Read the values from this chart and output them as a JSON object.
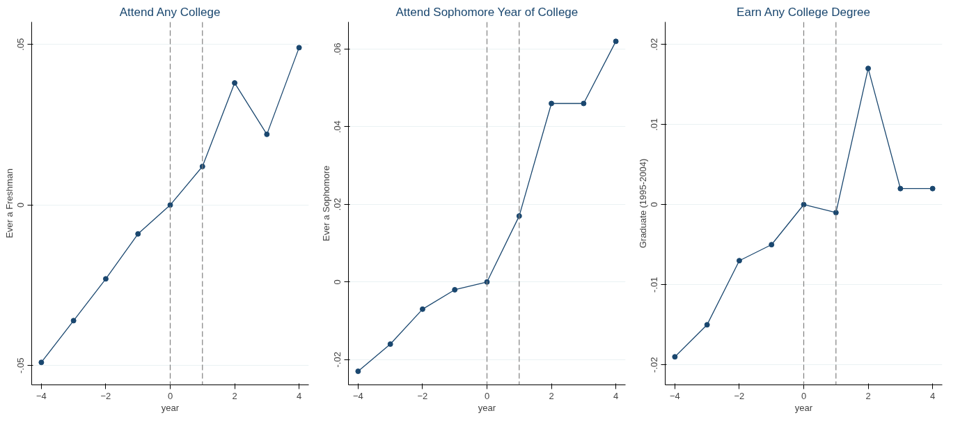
{
  "chart_data": [
    {
      "type": "line",
      "title": "Attend Any College",
      "xlabel": "year",
      "ylabel": "Ever a Freshman",
      "x": [
        -4,
        -3,
        -2,
        -1,
        0,
        1,
        2,
        3,
        4
      ],
      "series": [
        {
          "color": "#1a476f",
          "values": [
            -0.049,
            -0.036,
            -0.023,
            -0.009,
            0,
            0.012,
            0.038,
            0.022,
            0.049
          ]
        }
      ],
      "xlim": [
        -4.3,
        4.3
      ],
      "xticks": [
        -4,
        -2,
        0,
        2,
        4
      ],
      "ylim": [
        -0.056,
        0.057
      ],
      "yticks": [
        {
          "value": -0.05,
          "label": "-.05"
        },
        {
          "value": 0,
          "label": "0"
        },
        {
          "value": 0.05,
          "label": ".05"
        }
      ],
      "ref_lines": [
        {
          "axis": "x",
          "value": 0,
          "color": "#7f7f7f",
          "line_style": "dashed"
        },
        {
          "axis": "x",
          "value": 1,
          "color": "#7f7f7f",
          "line_style": "dashed"
        }
      ],
      "grid": "y",
      "marker": "circle",
      "line_style": "solid"
    },
    {
      "type": "line",
      "title": "Attend Sophomore Year of College",
      "xlabel": "year",
      "ylabel": "Ever a Sophomore",
      "x": [
        -4,
        -3,
        -2,
        -1,
        0,
        1,
        2,
        3,
        4
      ],
      "series": [
        {
          "color": "#1a476f",
          "values": [
            -0.023,
            -0.016,
            -0.007,
            -0.002,
            0,
            0.017,
            0.046,
            0.046,
            0.062
          ]
        }
      ],
      "xlim": [
        -4.3,
        4.3
      ],
      "xticks": [
        -4,
        -2,
        0,
        2,
        4
      ],
      "ylim": [
        -0.0265,
        0.067
      ],
      "yticks": [
        {
          "value": -0.02,
          "label": "-.02"
        },
        {
          "value": 0,
          "label": "0"
        },
        {
          "value": 0.02,
          "label": ".02"
        },
        {
          "value": 0.04,
          "label": ".04"
        },
        {
          "value": 0.06,
          "label": ".06"
        }
      ],
      "ref_lines": [
        {
          "axis": "x",
          "value": 0,
          "color": "#7f7f7f",
          "line_style": "dashed"
        },
        {
          "axis": "x",
          "value": 1,
          "color": "#7f7f7f",
          "line_style": "dashed"
        }
      ],
      "grid": "y",
      "marker": "circle",
      "line_style": "solid"
    },
    {
      "type": "line",
      "title": "Earn Any College Degree",
      "xlabel": "year",
      "ylabel": "Graduate (1995-2004)",
      "x": [
        -4,
        -3,
        -2,
        -1,
        0,
        1,
        2,
        3,
        4
      ],
      "series": [
        {
          "color": "#1a476f",
          "values": [
            -0.019,
            -0.015,
            -0.007,
            -0.005,
            0,
            -0.001,
            0.017,
            0.002,
            0.002
          ]
        }
      ],
      "xlim": [
        -4.3,
        4.3
      ],
      "xticks": [
        -4,
        -2,
        0,
        2,
        4
      ],
      "ylim": [
        -0.0225,
        0.0228
      ],
      "yticks": [
        {
          "value": -0.02,
          "label": "-.02"
        },
        {
          "value": -0.01,
          "label": "-.01"
        },
        {
          "value": 0,
          "label": "0"
        },
        {
          "value": 0.01,
          "label": ".01"
        },
        {
          "value": 0.02,
          "label": ".02"
        }
      ],
      "ref_lines": [
        {
          "axis": "x",
          "value": 0,
          "color": "#7f7f7f",
          "line_style": "dashed"
        },
        {
          "axis": "x",
          "value": 1,
          "color": "#7f7f7f",
          "line_style": "dashed"
        }
      ],
      "grid": "y",
      "marker": "circle",
      "line_style": "solid"
    }
  ]
}
